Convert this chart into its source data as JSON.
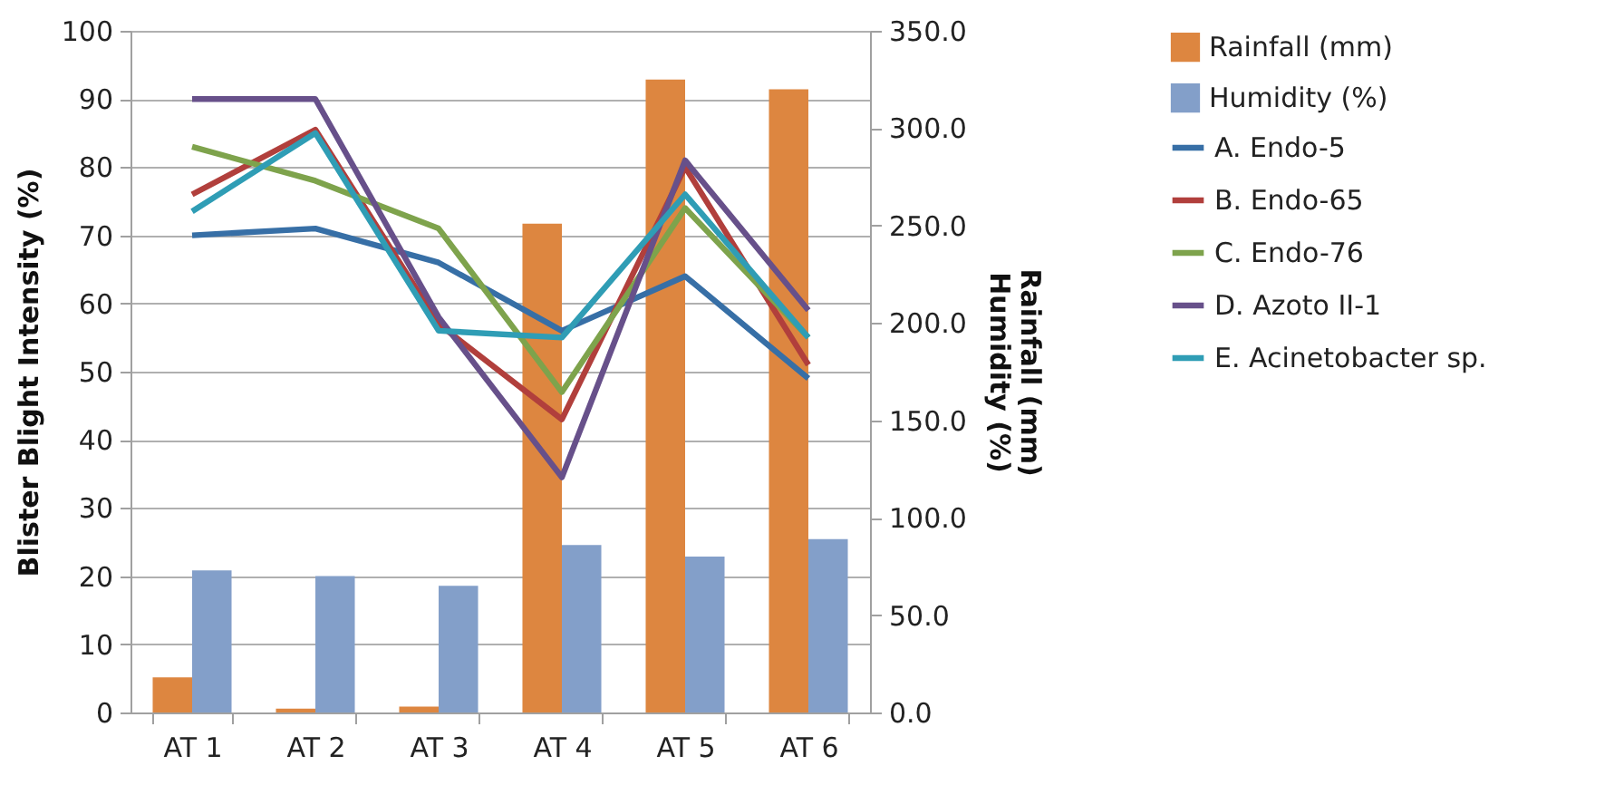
{
  "chart_data": {
    "type": "line",
    "ylabel": "Blister Blight Intensity (%)",
    "y2label": "Rainfall (mm)\nHumidity (%)",
    "categories": [
      "AT 1",
      "AT 2",
      "AT 3",
      "AT 4",
      "AT 5",
      "AT 6"
    ],
    "series": [
      {
        "name": "Rainfall (mm)",
        "type": "bar",
        "axis": "y2",
        "color": "#dd8640",
        "values": [
          18,
          2,
          3,
          251,
          325,
          320
        ]
      },
      {
        "name": "Humidity (%)",
        "type": "bar",
        "axis": "y2",
        "color": "#839fc9",
        "values": [
          73,
          70,
          65,
          86,
          80,
          89
        ]
      },
      {
        "name": "A. Endo-5",
        "color": "#376fa6",
        "values": [
          70,
          71,
          66,
          56,
          64,
          49
        ]
      },
      {
        "name": "B. Endo-65",
        "color": "#b13f3c",
        "values": [
          76,
          85.5,
          57,
          43,
          80,
          51
        ]
      },
      {
        "name": "C. Endo-76",
        "color": "#7ea34c",
        "values": [
          83,
          78,
          71,
          47,
          74,
          55
        ]
      },
      {
        "name": "D. Azoto II-1",
        "color": "#67508a",
        "values": [
          90,
          90,
          58,
          34.5,
          81,
          59
        ]
      },
      {
        "name": "E. Acinetobacter sp.",
        "color": "#2f9db5",
        "values": [
          73.5,
          85,
          56,
          55,
          76,
          55
        ]
      }
    ],
    "ylim": [
      0,
      100
    ],
    "yticks": [
      0,
      10,
      20,
      30,
      40,
      50,
      60,
      70,
      80,
      90,
      100
    ],
    "y2lim": [
      0,
      350
    ],
    "y2ticks": [
      {
        "value": 0,
        "label": "0.0"
      },
      {
        "value": 50,
        "label": "50.0"
      },
      {
        "value": 100,
        "label": "100.0"
      },
      {
        "value": 150,
        "label": "150.0"
      },
      {
        "value": 200,
        "label": "200.0"
      },
      {
        "value": 250,
        "label": "250.0"
      },
      {
        "value": 300,
        "label": "300.0"
      },
      {
        "value": 350,
        "label": "350.0"
      }
    ],
    "grid": "y",
    "legend": "right",
    "line_style": "solid",
    "marker": "none"
  }
}
